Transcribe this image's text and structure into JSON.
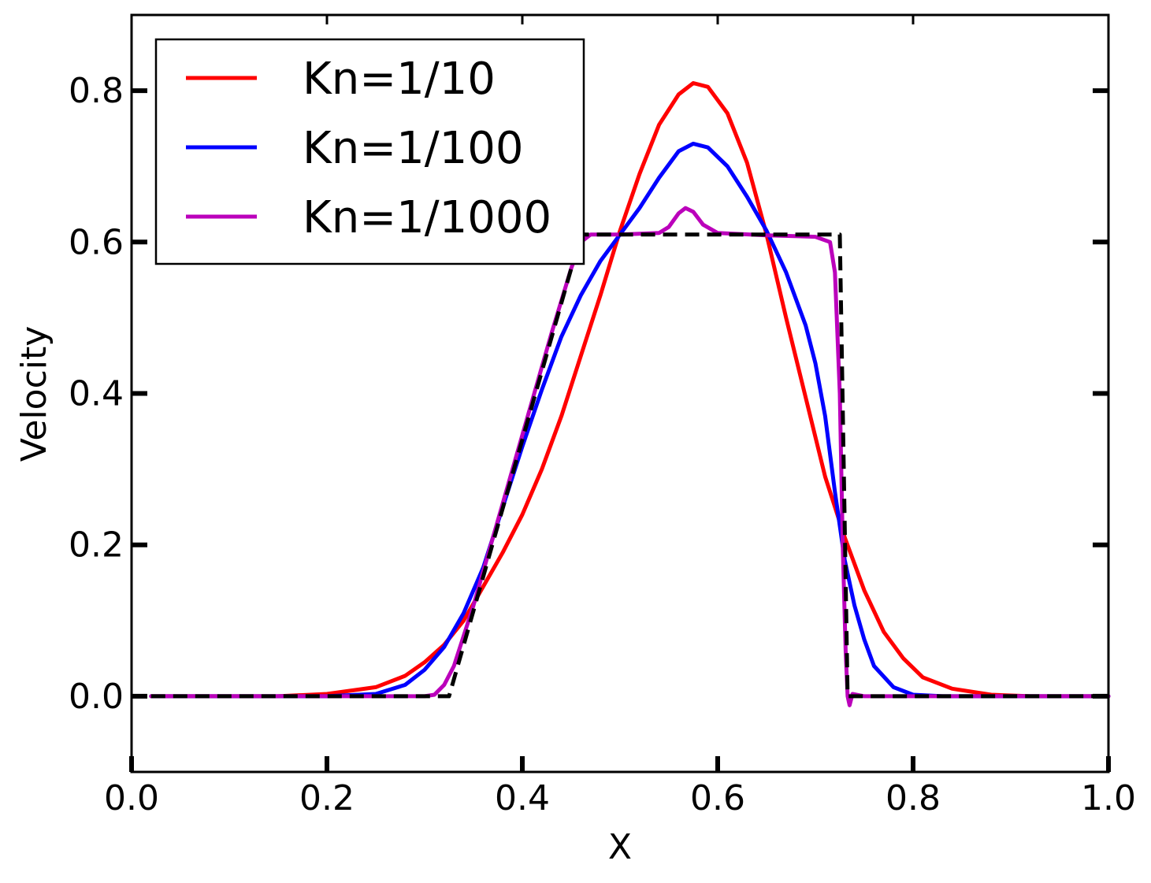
{
  "chart_data": {
    "type": "line",
    "title": "",
    "xlabel": "X",
    "ylabel": "Velocity",
    "xlim": [
      0.0,
      1.0
    ],
    "ylim": [
      -0.1,
      0.9
    ],
    "x_ticks": [
      "0.0",
      "0.2",
      "0.4",
      "0.6",
      "0.8",
      "1.0"
    ],
    "y_ticks": [
      "0.0",
      "0.2",
      "0.4",
      "0.6",
      "0.8"
    ],
    "grid": false,
    "legend_position": "top-left",
    "series": [
      {
        "name": "Kn=1/10",
        "color": "#ff0000",
        "style": "solid",
        "points": [
          [
            0.02,
            0.0
          ],
          [
            0.15,
            0.0
          ],
          [
            0.2,
            0.003
          ],
          [
            0.25,
            0.012
          ],
          [
            0.28,
            0.027
          ],
          [
            0.3,
            0.045
          ],
          [
            0.32,
            0.068
          ],
          [
            0.34,
            0.1
          ],
          [
            0.36,
            0.145
          ],
          [
            0.38,
            0.19
          ],
          [
            0.4,
            0.24
          ],
          [
            0.42,
            0.3
          ],
          [
            0.44,
            0.37
          ],
          [
            0.46,
            0.45
          ],
          [
            0.48,
            0.53
          ],
          [
            0.5,
            0.615
          ],
          [
            0.52,
            0.69
          ],
          [
            0.54,
            0.755
          ],
          [
            0.56,
            0.795
          ],
          [
            0.575,
            0.81
          ],
          [
            0.59,
            0.805
          ],
          [
            0.61,
            0.77
          ],
          [
            0.63,
            0.705
          ],
          [
            0.65,
            0.61
          ],
          [
            0.67,
            0.5
          ],
          [
            0.69,
            0.395
          ],
          [
            0.71,
            0.29
          ],
          [
            0.73,
            0.21
          ],
          [
            0.75,
            0.14
          ],
          [
            0.77,
            0.085
          ],
          [
            0.79,
            0.05
          ],
          [
            0.81,
            0.025
          ],
          [
            0.84,
            0.01
          ],
          [
            0.88,
            0.002
          ],
          [
            0.92,
            0.0
          ],
          [
            1.0,
            0.0
          ]
        ]
      },
      {
        "name": "Kn=1/100",
        "color": "#0000ff",
        "style": "solid",
        "points": [
          [
            0.02,
            0.0
          ],
          [
            0.2,
            0.0
          ],
          [
            0.25,
            0.003
          ],
          [
            0.28,
            0.015
          ],
          [
            0.3,
            0.035
          ],
          [
            0.32,
            0.065
          ],
          [
            0.34,
            0.11
          ],
          [
            0.36,
            0.17
          ],
          [
            0.38,
            0.25
          ],
          [
            0.4,
            0.33
          ],
          [
            0.42,
            0.405
          ],
          [
            0.44,
            0.475
          ],
          [
            0.46,
            0.53
          ],
          [
            0.48,
            0.575
          ],
          [
            0.5,
            0.61
          ],
          [
            0.52,
            0.645
          ],
          [
            0.54,
            0.685
          ],
          [
            0.56,
            0.72
          ],
          [
            0.575,
            0.73
          ],
          [
            0.59,
            0.725
          ],
          [
            0.61,
            0.7
          ],
          [
            0.63,
            0.66
          ],
          [
            0.65,
            0.615
          ],
          [
            0.67,
            0.56
          ],
          [
            0.69,
            0.49
          ],
          [
            0.7,
            0.44
          ],
          [
            0.71,
            0.37
          ],
          [
            0.72,
            0.27
          ],
          [
            0.73,
            0.18
          ],
          [
            0.74,
            0.12
          ],
          [
            0.75,
            0.075
          ],
          [
            0.76,
            0.04
          ],
          [
            0.78,
            0.012
          ],
          [
            0.8,
            0.002
          ],
          [
            0.83,
            0.0
          ],
          [
            1.0,
            0.0
          ]
        ]
      },
      {
        "name": "Kn=1/1000",
        "color": "#bb00bb",
        "style": "solid",
        "points": [
          [
            0.02,
            0.0
          ],
          [
            0.3,
            0.0
          ],
          [
            0.31,
            0.002
          ],
          [
            0.32,
            0.015
          ],
          [
            0.33,
            0.04
          ],
          [
            0.35,
            0.12
          ],
          [
            0.37,
            0.21
          ],
          [
            0.39,
            0.3
          ],
          [
            0.41,
            0.39
          ],
          [
            0.43,
            0.48
          ],
          [
            0.45,
            0.565
          ],
          [
            0.46,
            0.6
          ],
          [
            0.47,
            0.61
          ],
          [
            0.5,
            0.61
          ],
          [
            0.54,
            0.612
          ],
          [
            0.55,
            0.62
          ],
          [
            0.56,
            0.638
          ],
          [
            0.567,
            0.645
          ],
          [
            0.575,
            0.64
          ],
          [
            0.585,
            0.623
          ],
          [
            0.6,
            0.612
          ],
          [
            0.65,
            0.609
          ],
          [
            0.7,
            0.607
          ],
          [
            0.715,
            0.6
          ],
          [
            0.72,
            0.56
          ],
          [
            0.725,
            0.4
          ],
          [
            0.728,
            0.2
          ],
          [
            0.731,
            0.06
          ],
          [
            0.733,
            0.0
          ],
          [
            0.735,
            -0.012
          ],
          [
            0.738,
            0.003
          ],
          [
            0.742,
            0.002
          ],
          [
            0.75,
            0.0
          ],
          [
            1.0,
            0.0
          ]
        ]
      },
      {
        "name": "",
        "color": "#000000",
        "style": "dashed",
        "points": [
          [
            0.02,
            0.0
          ],
          [
            0.31,
            0.0
          ],
          [
            0.325,
            0.0
          ],
          [
            0.46,
            0.61
          ],
          [
            0.725,
            0.61
          ],
          [
            0.733,
            0.0
          ],
          [
            1.0,
            0.0
          ]
        ]
      }
    ]
  },
  "legend": {
    "items": [
      {
        "label": "Kn=1/10",
        "color": "#ff0000"
      },
      {
        "label": "Kn=1/100",
        "color": "#0000ff"
      },
      {
        "label": "Kn=1/1000",
        "color": "#bb00bb"
      }
    ]
  }
}
